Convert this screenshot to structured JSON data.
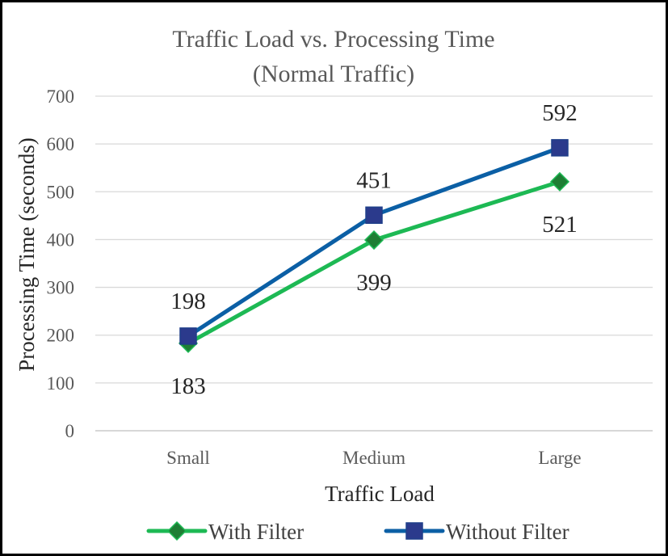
{
  "chart_data": {
    "type": "line",
    "title_lines": [
      "Traffic Load vs. Processing Time",
      "(Normal Traffic)"
    ],
    "xlabel": "Traffic Load",
    "ylabel": "Processing Time (seconds)",
    "categories": [
      "Small",
      "Medium",
      "Large"
    ],
    "ylim": [
      0,
      700
    ],
    "yticks": [
      "0",
      "100",
      "200",
      "300",
      "400",
      "500",
      "600",
      "700"
    ],
    "grid": true,
    "legend_position": "bottom",
    "series": [
      {
        "name": "With Filter",
        "values": [
          183,
          399,
          521
        ],
        "labels": [
          "183",
          "399",
          "521"
        ],
        "color": "#1db954",
        "marker": "diamond",
        "marker_color": "#1e7e34"
      },
      {
        "name": "Without Filter",
        "values": [
          198,
          451,
          592
        ],
        "labels": [
          "198",
          "451",
          "592"
        ],
        "color": "#0b5fa5",
        "marker": "square",
        "marker_color": "#2b3a8c"
      }
    ]
  }
}
